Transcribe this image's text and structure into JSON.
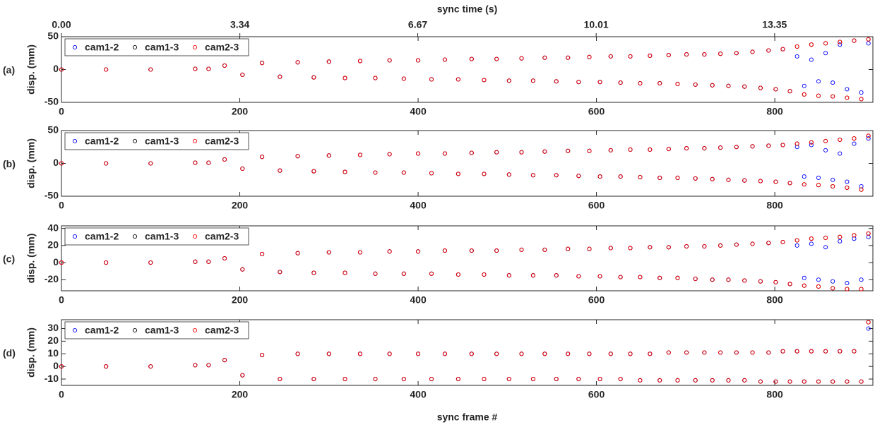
{
  "chart_data": [
    {
      "type": "scatter",
      "panel_label": "(a)",
      "title": "sync time (s)",
      "ylabel": "disp. (mm)",
      "x": [
        0,
        50,
        100,
        150,
        165,
        183,
        203,
        225,
        245,
        265,
        283,
        300,
        318,
        335,
        352,
        368,
        384,
        400,
        415,
        430,
        445,
        460,
        474,
        488,
        502,
        516,
        529,
        542,
        555,
        568,
        580,
        592,
        604,
        616,
        627,
        638,
        649,
        660,
        671,
        681,
        691,
        701,
        711,
        721,
        730,
        739,
        748,
        757,
        766,
        775,
        784,
        793,
        801,
        809,
        817,
        825,
        833,
        841,
        849,
        857,
        865,
        873,
        881,
        889,
        897,
        905
      ],
      "series": [
        {
          "name": "cam1-2",
          "color": "#0000ff",
          "values": [
            0,
            0,
            0,
            1,
            1,
            6,
            -8,
            10,
            -11,
            11,
            -12,
            12,
            -13,
            13,
            -13,
            14,
            -14,
            14,
            -15,
            15,
            -15,
            16,
            -16,
            16,
            -17,
            17,
            -17,
            18,
            -18,
            18,
            -19,
            19,
            -19,
            20,
            -20,
            20,
            -21,
            21,
            -21,
            22,
            -22,
            23,
            -23,
            23,
            -24,
            24,
            -25,
            25,
            -26,
            27,
            -28,
            29,
            -30,
            31,
            -33,
            20,
            -25,
            15,
            -18,
            25,
            -20,
            38,
            -30,
            44,
            -35,
            40
          ]
        },
        {
          "name": "cam1-3",
          "color": "#000000",
          "values": [
            0,
            0,
            0,
            1,
            1,
            6,
            -8,
            10,
            -11,
            11,
            -12,
            12,
            -13,
            13,
            -13,
            14,
            -14,
            14,
            -15,
            15,
            -15,
            16,
            -16,
            16,
            -17,
            17,
            -17,
            18,
            -18,
            18,
            -19,
            19,
            -19,
            20,
            -20,
            20,
            -21,
            21,
            -21,
            22,
            -22,
            23,
            -23,
            23,
            -24,
            24,
            -25,
            25,
            -26,
            27,
            -28,
            29,
            -30,
            31,
            -33,
            35,
            -38,
            38,
            -40,
            40,
            -41,
            42,
            -43,
            44,
            -45,
            46
          ]
        },
        {
          "name": "cam2-3",
          "color": "#ff0000",
          "values": [
            0,
            0,
            0,
            1,
            1,
            6,
            -8,
            10,
            -11,
            11,
            -12,
            12,
            -13,
            13,
            -13,
            14,
            -14,
            14,
            -15,
            15,
            -15,
            16,
            -16,
            16,
            -17,
            17,
            -17,
            18,
            -18,
            18,
            -19,
            19,
            -19,
            20,
            -20,
            20,
            -21,
            21,
            -21,
            22,
            -22,
            23,
            -23,
            23,
            -24,
            24,
            -25,
            25,
            -26,
            27,
            -28,
            29,
            -30,
            31,
            -33,
            35,
            -38,
            38,
            -40,
            40,
            -41,
            42,
            -43,
            44,
            -45,
            46
          ]
        }
      ],
      "xlim": [
        0,
        910
      ],
      "xticks": [
        0,
        200,
        400,
        600,
        800
      ],
      "x2lim": [
        0,
        15.19
      ],
      "x2ticks": [
        {
          "value": 0,
          "label": "0.00"
        },
        3.34,
        6.67,
        10.01,
        13.35
      ],
      "ylim": [
        -50,
        50
      ],
      "yticks": [
        -50,
        0,
        50
      ],
      "legend": "upper left"
    },
    {
      "type": "scatter",
      "panel_label": "(b)",
      "ylabel": "disp. (mm)",
      "x": [
        0,
        50,
        100,
        150,
        165,
        183,
        203,
        225,
        245,
        265,
        283,
        300,
        318,
        335,
        352,
        368,
        384,
        400,
        415,
        430,
        445,
        460,
        474,
        488,
        502,
        516,
        529,
        542,
        555,
        568,
        580,
        592,
        604,
        616,
        627,
        638,
        649,
        660,
        671,
        681,
        691,
        701,
        711,
        721,
        730,
        739,
        748,
        757,
        766,
        775,
        784,
        793,
        801,
        809,
        817,
        825,
        833,
        841,
        849,
        857,
        865,
        873,
        881,
        889,
        897,
        905
      ],
      "series": [
        {
          "name": "cam1-2",
          "color": "#0000ff",
          "values": [
            0,
            0,
            0,
            1,
            1,
            6,
            -8,
            10,
            -11,
            11,
            -12,
            12,
            -13,
            13,
            -14,
            14,
            -14,
            15,
            -15,
            15,
            -16,
            16,
            -16,
            17,
            -17,
            17,
            -18,
            18,
            -18,
            19,
            -19,
            19,
            -20,
            20,
            -20,
            21,
            -21,
            21,
            -22,
            22,
            -22,
            23,
            -23,
            23,
            -24,
            24,
            -25,
            25,
            -26,
            26,
            -27,
            27,
            -28,
            28,
            -30,
            25,
            -20,
            28,
            -22,
            20,
            -25,
            15,
            -28,
            30,
            -35,
            38
          ]
        },
        {
          "name": "cam1-3",
          "color": "#000000",
          "values": [
            0,
            0,
            0,
            1,
            1,
            6,
            -8,
            10,
            -11,
            11,
            -12,
            12,
            -13,
            13,
            -14,
            14,
            -14,
            15,
            -15,
            15,
            -16,
            16,
            -16,
            17,
            -17,
            17,
            -18,
            18,
            -18,
            19,
            -19,
            19,
            -20,
            20,
            -20,
            21,
            -21,
            21,
            -22,
            22,
            -22,
            23,
            -23,
            23,
            -24,
            24,
            -25,
            25,
            -26,
            26,
            -27,
            27,
            -28,
            28,
            -30,
            30,
            -32,
            32,
            -33,
            34,
            -35,
            36,
            -37,
            38,
            -40,
            42
          ]
        },
        {
          "name": "cam2-3",
          "color": "#ff0000",
          "values": [
            0,
            0,
            0,
            1,
            1,
            6,
            -8,
            10,
            -11,
            11,
            -12,
            12,
            -13,
            13,
            -14,
            14,
            -14,
            15,
            -15,
            15,
            -16,
            16,
            -16,
            17,
            -17,
            17,
            -18,
            18,
            -18,
            19,
            -19,
            19,
            -20,
            20,
            -20,
            21,
            -21,
            21,
            -22,
            22,
            -22,
            23,
            -23,
            23,
            -24,
            24,
            -25,
            25,
            -26,
            26,
            -27,
            27,
            -28,
            28,
            -30,
            30,
            -32,
            32,
            -33,
            34,
            -35,
            36,
            -37,
            38,
            -40,
            42
          ]
        }
      ],
      "xlim": [
        0,
        910
      ],
      "xticks": [
        0,
        200,
        400,
        600,
        800
      ],
      "ylim": [
        -50,
        50
      ],
      "yticks": [
        -50,
        0,
        50
      ],
      "legend": "upper left"
    },
    {
      "type": "scatter",
      "panel_label": "(c)",
      "ylabel": "disp. (mm)",
      "x": [
        0,
        50,
        100,
        150,
        165,
        183,
        203,
        225,
        245,
        265,
        283,
        300,
        318,
        335,
        352,
        368,
        384,
        400,
        415,
        430,
        445,
        460,
        474,
        488,
        502,
        516,
        529,
        542,
        555,
        568,
        580,
        592,
        604,
        616,
        627,
        638,
        649,
        660,
        671,
        681,
        691,
        701,
        711,
        721,
        730,
        739,
        748,
        757,
        766,
        775,
        784,
        793,
        801,
        809,
        817,
        825,
        833,
        841,
        849,
        857,
        865,
        873,
        881,
        889,
        897,
        905
      ],
      "series": [
        {
          "name": "cam1-2",
          "color": "#0000ff",
          "values": [
            0,
            0,
            0,
            1,
            1,
            5,
            -8,
            10,
            -11,
            11,
            -12,
            12,
            -12,
            12,
            -13,
            13,
            -13,
            13,
            -13,
            14,
            -14,
            14,
            -14,
            14,
            -15,
            15,
            -15,
            15,
            -15,
            16,
            -16,
            16,
            -16,
            17,
            -17,
            17,
            -17,
            18,
            -18,
            18,
            -18,
            19,
            -19,
            19,
            -20,
            20,
            -20,
            21,
            -21,
            22,
            -22,
            23,
            -23,
            24,
            -25,
            20,
            -18,
            22,
            -20,
            18,
            -22,
            25,
            -24,
            28,
            -20,
            30
          ]
        },
        {
          "name": "cam1-3",
          "color": "#000000",
          "values": [
            0,
            0,
            0,
            1,
            1,
            5,
            -8,
            10,
            -11,
            11,
            -12,
            12,
            -12,
            12,
            -13,
            13,
            -13,
            13,
            -13,
            14,
            -14,
            14,
            -14,
            14,
            -15,
            15,
            -15,
            15,
            -15,
            16,
            -16,
            16,
            -16,
            17,
            -17,
            17,
            -17,
            18,
            -18,
            18,
            -18,
            19,
            -19,
            19,
            -20,
            20,
            -20,
            21,
            -21,
            22,
            -22,
            23,
            -23,
            24,
            -25,
            26,
            -27,
            28,
            -28,
            29,
            -30,
            30,
            -31,
            32,
            -31,
            34
          ]
        },
        {
          "name": "cam2-3",
          "color": "#ff0000",
          "values": [
            0,
            0,
            0,
            1,
            1,
            5,
            -8,
            10,
            -11,
            11,
            -12,
            12,
            -12,
            12,
            -13,
            13,
            -13,
            13,
            -13,
            14,
            -14,
            14,
            -14,
            14,
            -15,
            15,
            -15,
            15,
            -15,
            16,
            -16,
            16,
            -16,
            17,
            -17,
            17,
            -17,
            18,
            -18,
            18,
            -18,
            19,
            -19,
            19,
            -20,
            20,
            -20,
            21,
            -21,
            22,
            -22,
            23,
            -23,
            24,
            -25,
            26,
            -27,
            28,
            -28,
            29,
            -30,
            30,
            -31,
            32,
            -31,
            34
          ]
        }
      ],
      "xlim": [
        0,
        910
      ],
      "xticks": [
        0,
        200,
        400,
        600,
        800
      ],
      "ylim": [
        -33,
        43
      ],
      "yticks": [
        -20,
        0,
        20,
        40
      ],
      "legend": "upper left"
    },
    {
      "type": "scatter",
      "panel_label": "(d)",
      "ylabel": "disp. (mm)",
      "xlabel": "sync frame #",
      "x": [
        0,
        50,
        100,
        150,
        165,
        183,
        203,
        225,
        245,
        265,
        283,
        300,
        318,
        335,
        352,
        368,
        384,
        400,
        415,
        430,
        445,
        460,
        474,
        488,
        502,
        516,
        529,
        542,
        555,
        568,
        580,
        592,
        604,
        616,
        627,
        638,
        649,
        660,
        671,
        681,
        691,
        701,
        711,
        721,
        730,
        739,
        748,
        757,
        766,
        775,
        784,
        793,
        801,
        809,
        817,
        825,
        833,
        841,
        849,
        857,
        865,
        873,
        881,
        889,
        897,
        905
      ],
      "series": [
        {
          "name": "cam1-2",
          "color": "#0000ff",
          "values": [
            0,
            0,
            0,
            1,
            1,
            5,
            -7,
            9,
            -10,
            10,
            -10,
            10,
            -10,
            10,
            -10,
            10,
            -10,
            10,
            -10,
            10,
            -10,
            10,
            -10,
            10,
            -10,
            10,
            -10,
            10,
            -10,
            10,
            -10,
            10,
            -10,
            10,
            -10,
            10,
            -11,
            10,
            -11,
            11,
            -11,
            11,
            -11,
            11,
            -11,
            11,
            -11,
            11,
            -11,
            11,
            -12,
            11,
            -12,
            12,
            -12,
            12,
            -12,
            12,
            -12,
            12,
            -12,
            12,
            -12,
            12,
            -12,
            30
          ]
        },
        {
          "name": "cam1-3",
          "color": "#000000",
          "values": [
            0,
            0,
            0,
            1,
            1,
            5,
            -7,
            9,
            -10,
            10,
            -10,
            10,
            -10,
            10,
            -10,
            10,
            -10,
            10,
            -10,
            10,
            -10,
            10,
            -10,
            10,
            -10,
            10,
            -10,
            10,
            -10,
            10,
            -10,
            10,
            -10,
            10,
            -10,
            10,
            -11,
            10,
            -11,
            11,
            -11,
            11,
            -11,
            11,
            -11,
            11,
            -11,
            11,
            -11,
            11,
            -12,
            11,
            -12,
            12,
            -12,
            12,
            -12,
            12,
            -12,
            12,
            -12,
            12,
            -12,
            12,
            -12,
            35
          ]
        },
        {
          "name": "cam2-3",
          "color": "#ff0000",
          "values": [
            0,
            0,
            0,
            1,
            1,
            5,
            -7,
            9,
            -10,
            10,
            -10,
            10,
            -10,
            10,
            -10,
            10,
            -10,
            10,
            -10,
            10,
            -10,
            10,
            -10,
            10,
            -10,
            10,
            -10,
            10,
            -10,
            10,
            -10,
            10,
            -10,
            10,
            -10,
            10,
            -11,
            10,
            -11,
            11,
            -11,
            11,
            -11,
            11,
            -11,
            11,
            -11,
            11,
            -11,
            11,
            -12,
            11,
            -12,
            12,
            -12,
            12,
            -12,
            12,
            -12,
            12,
            -12,
            12,
            -12,
            12,
            -12,
            35
          ]
        }
      ],
      "xlim": [
        0,
        910
      ],
      "xticks": [
        0,
        200,
        400,
        600,
        800
      ],
      "ylim": [
        -15,
        37
      ],
      "yticks": [
        -10,
        0,
        10,
        20,
        30
      ],
      "legend": "upper left"
    }
  ]
}
